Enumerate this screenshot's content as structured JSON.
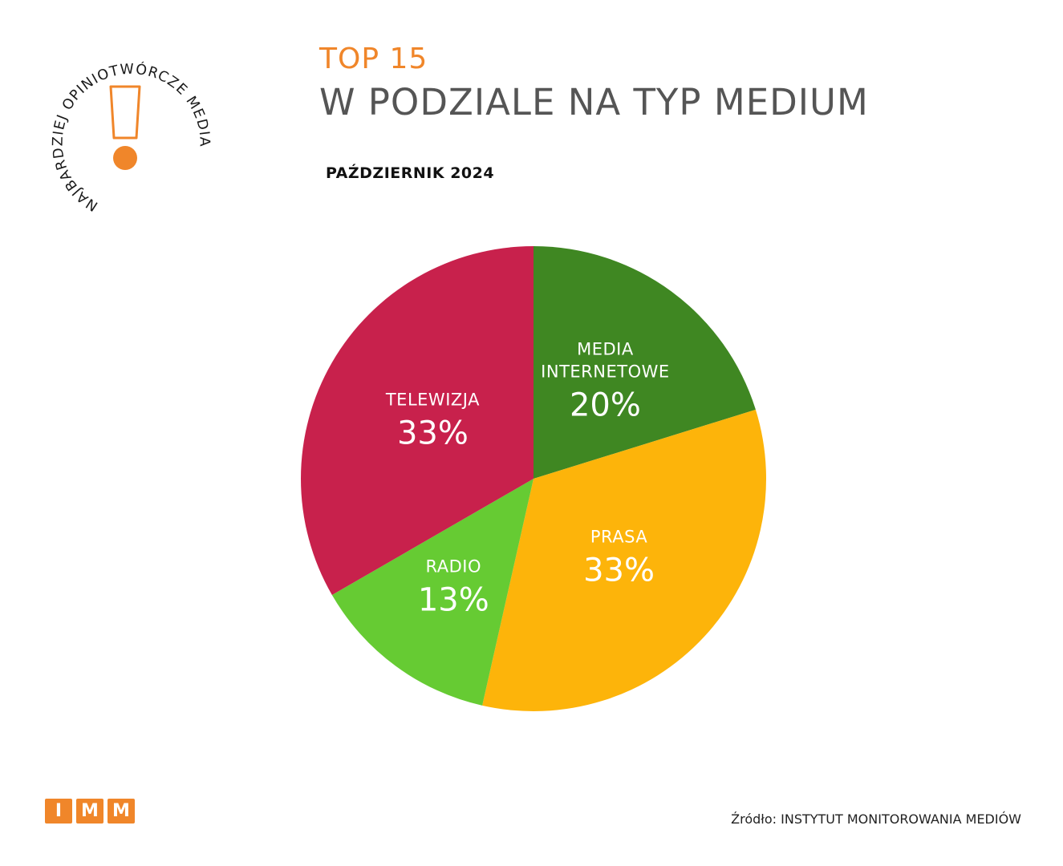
{
  "badge": {
    "ring_text": "NAJBARDZIEJ OPINIOTWÓRCZE MEDIA",
    "accent_color": "#F0862A",
    "icon": "exclamation-icon"
  },
  "header": {
    "title_top": "TOP 15",
    "title_main": "W PODZIALE NA TYP MEDIUM",
    "subtitle": "PAŹDZIERNIK 2024",
    "title_top_color": "#F0862A",
    "title_main_color": "#555555",
    "subtitle_color": "#111111"
  },
  "chart_data": {
    "type": "pie",
    "title": "",
    "start": "top",
    "direction": "clockwise",
    "slices": [
      {
        "label_lines": [
          "MEDIA",
          "INTERNETOWE"
        ],
        "value": 20,
        "display": "20%",
        "color": "#3F8722"
      },
      {
        "label_lines": [
          "PRASA"
        ],
        "value": 33,
        "display": "33%",
        "color": "#FDB40A"
      },
      {
        "label_lines": [
          "RADIO"
        ],
        "value": 13,
        "display": "13%",
        "color": "#66CB33"
      },
      {
        "label_lines": [
          "TELEWIZJA"
        ],
        "value": 33,
        "display": "33%",
        "color": "#C8214C"
      }
    ]
  },
  "footer": {
    "logo_letters": [
      "I",
      "M",
      "M"
    ],
    "logo_color": "#F0862A",
    "source_label": "Źródło:",
    "source_value": "INSTYTUT MONITOROWANIA MEDIÓW"
  }
}
